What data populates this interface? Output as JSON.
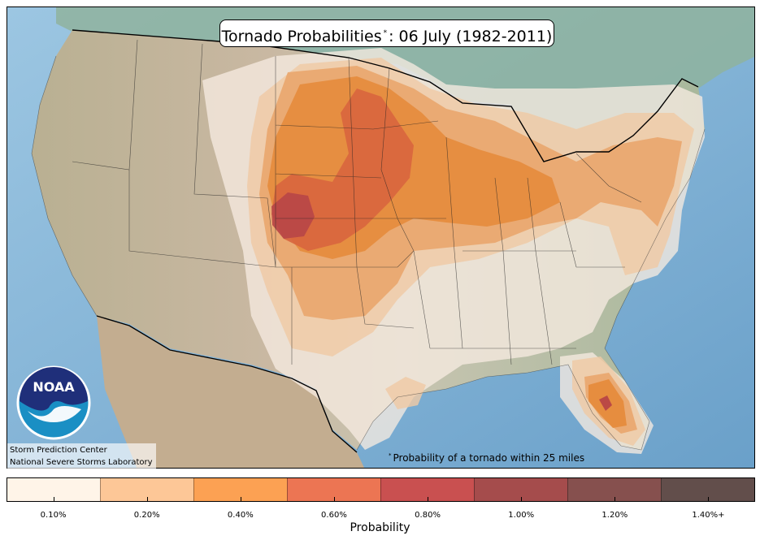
{
  "map": {
    "title_main": "Tornado Probabilities",
    "title_marker": "*",
    "title_rest": ": 06 July (1982-2011)",
    "footnote_marker": "*",
    "footnote": "Probability of a tornado within 25 miles",
    "credit_line1": "Storm Prediction Center",
    "credit_line2": "National Severe Storms Laboratory",
    "logo_text": "NOAA",
    "colors": {
      "ocean": "#7fb0d4",
      "land": "#c9b8a2",
      "level_0_05": "#f6ebe0",
      "level_0_10": "#efc9a5",
      "level_0_20": "#e9a368",
      "level_0_40": "#e58a3a",
      "level_0_60": "#d8653e",
      "level_0_80": "#b84646",
      "level_1_00": "#9a3a40"
    }
  },
  "colorbar": {
    "label": "Probability",
    "ticks": [
      "0.10%",
      "0.20%",
      "0.40%",
      "0.60%",
      "0.80%",
      "1.00%",
      "1.20%",
      "1.40%+"
    ],
    "colors": [
      "#fff4e8",
      "#fdc797",
      "#fca153",
      "#ec7553",
      "#c95050",
      "#a54c4c",
      "#86504e",
      "#624e4b"
    ]
  }
}
